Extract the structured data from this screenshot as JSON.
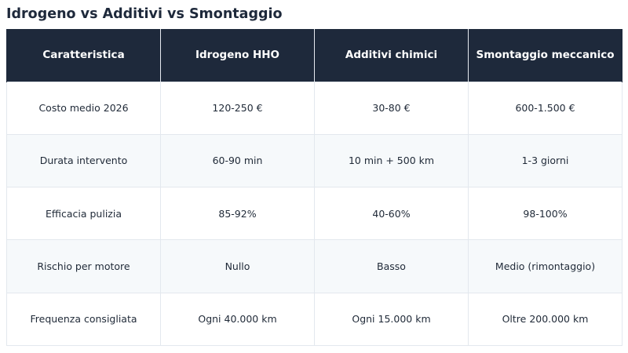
{
  "title": "Idrogeno vs Additivi vs Smontaggio",
  "table": {
    "headers": [
      "Caratteristica",
      "Idrogeno HHO",
      "Additivi chimici",
      "Smontaggio meccanico"
    ],
    "rows": [
      [
        "Costo medio 2026",
        "120-250 €",
        "30-80 €",
        "600-1.500 €"
      ],
      [
        "Durata intervento",
        "60-90 min",
        "10 min + 500 km",
        "1-3 giorni"
      ],
      [
        "Efficacia pulizia",
        "85-92%",
        "40-60%",
        "98-100%"
      ],
      [
        "Rischio per motore",
        "Nullo",
        "Basso",
        "Medio (rimontaggio)"
      ],
      [
        "Frequenza consigliata",
        "Ogni 40.000 km",
        "Ogni 15.000 km",
        "Oltre 200.000 km"
      ]
    ]
  },
  "colors": {
    "header_background": "#1e293b",
    "header_text": "#ffffff",
    "alt_row_background": "#f6f9fb",
    "border": "#e3e8ee"
  }
}
